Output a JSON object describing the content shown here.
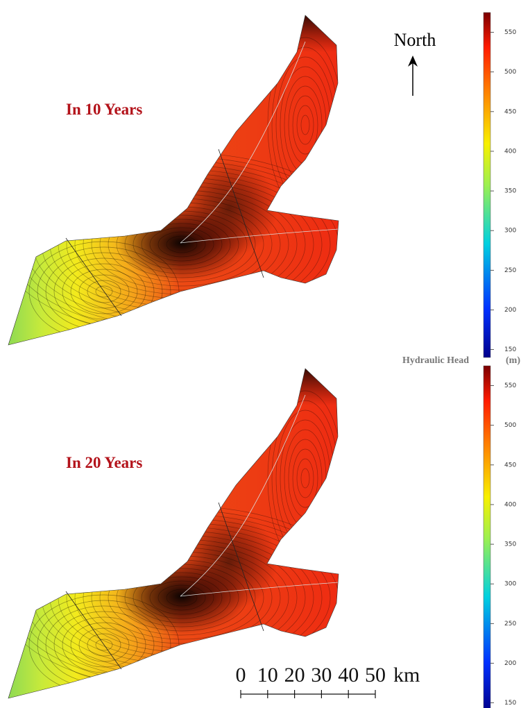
{
  "north": "North",
  "colorbar_title": "Hydraulic Head",
  "colorbar_unit": "(m)",
  "panels": [
    {
      "label": "In 10 Years",
      "colorbar": {
        "lim": [
          140,
          575
        ],
        "ticks": [
          150,
          200,
          250,
          300,
          350,
          400,
          450,
          500,
          550
        ]
      }
    },
    {
      "label": "In 20 Years",
      "colorbar": {
        "lim": [
          140,
          575
        ],
        "ticks": [
          150,
          200,
          250,
          300,
          350,
          400,
          450,
          500,
          550
        ]
      }
    }
  ],
  "scale_bar": {
    "ticks": [
      0,
      10,
      20,
      30,
      40,
      50
    ],
    "unit": "km"
  }
}
